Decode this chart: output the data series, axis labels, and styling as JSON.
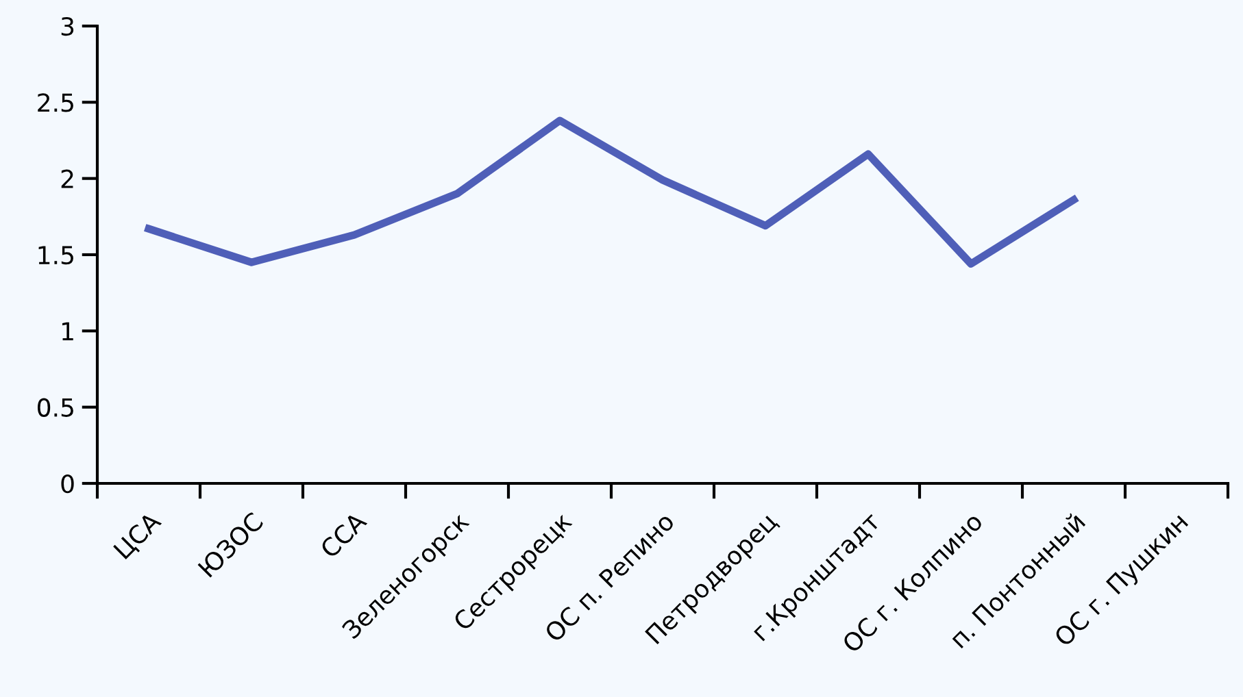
{
  "chart_data": {
    "type": "line",
    "categories": [
      "ЦСА",
      "ЮЗОС",
      "ССА",
      "Зеленогорск",
      "Сестрорецк",
      "ОС п. Репино",
      "Петродворец",
      "г.Кронштадт",
      "ОС г. Колпино",
      "п. Понтонный",
      "ОС г. Пушкин"
    ],
    "series": [
      {
        "color": "#4f5fb8",
        "values": [
          1.67,
          1.45,
          1.63,
          1.9,
          2.38,
          1.99,
          1.69,
          2.16,
          1.44,
          1.86,
          null
        ]
      }
    ],
    "ylim": [
      0,
      3
    ],
    "yticks": [
      0,
      0.5,
      1,
      1.5,
      2,
      2.5,
      3
    ],
    "grid": false,
    "marker": "none",
    "line_style": "solid"
  }
}
